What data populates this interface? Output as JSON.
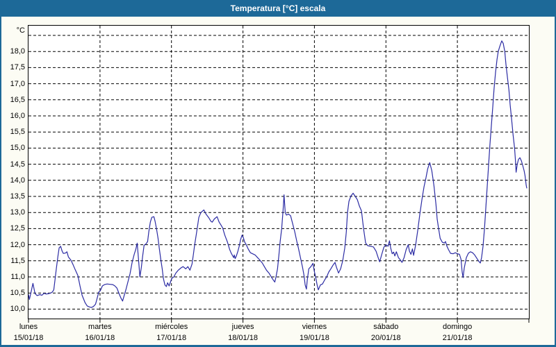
{
  "window": {
    "title": "Temperatura [°C] escala"
  },
  "colors": {
    "title_bar": "#1d6998",
    "frame": "#1d6998",
    "content_background": "#fcfcf4",
    "plot_background": "#ffffff",
    "series_line": "#2b2ba3",
    "grid": "#000000",
    "text": "#000000",
    "title_text": "#ffffff"
  },
  "chart_data": {
    "type": "line",
    "title": "Temperatura [°C] escala",
    "xlabel": "",
    "ylabel": "°C",
    "legend": "none",
    "grid": {
      "style": "dashed",
      "horizontal_step_degC": 0.5,
      "vertical_at_day_boundaries": true
    },
    "y_axis": {
      "min": 10.0,
      "max": 18.5,
      "tick_step": 0.5,
      "decimal_separator": ",",
      "ticks": [
        18.0,
        17.5,
        17.0,
        16.5,
        16.0,
        15.5,
        15.0,
        14.5,
        14.0,
        13.5,
        13.0,
        12.5,
        12.0,
        11.5,
        11.0,
        10.5,
        10.0
      ],
      "tick_labels": [
        "18,0",
        "17,5",
        "17,0",
        "16,5",
        "16,0",
        "15,5",
        "15,0",
        "14,5",
        "14,0",
        "13,5",
        "13,0",
        "12,5",
        "12,0",
        "11,5",
        "11,0",
        "10,5",
        "10,0"
      ],
      "unlabeled_top_gridline": 18.5
    },
    "x_axis": {
      "unit": "hours",
      "range_hours": [
        0,
        168
      ],
      "days_total": 7,
      "day_ticks": [
        {
          "name": "lunes",
          "date": "15/01/18"
        },
        {
          "name": "martes",
          "date": "16/01/18"
        },
        {
          "name": "miércoles",
          "date": "17/01/18"
        },
        {
          "name": "jueves",
          "date": "18/01/18"
        },
        {
          "name": "viernes",
          "date": "19/01/18"
        },
        {
          "name": "sábado",
          "date": "20/01/18"
        },
        {
          "name": "domingo",
          "date": "21/01/18"
        }
      ]
    },
    "series": [
      {
        "name": "Temperatura",
        "unit": "°C",
        "color": "#2b2ba3",
        "points_hours_temp": [
          [
            0,
            10.45
          ],
          [
            0.3,
            10.3
          ],
          [
            0.8,
            10.5
          ],
          [
            1.5,
            10.8
          ],
          [
            2.2,
            10.48
          ],
          [
            2.9,
            10.42
          ],
          [
            3.8,
            10.45
          ],
          [
            4.5,
            10.43
          ],
          [
            5.2,
            10.49
          ],
          [
            5.9,
            10.47
          ],
          [
            6.8,
            10.48
          ],
          [
            7.5,
            10.5
          ],
          [
            8,
            10.53
          ],
          [
            8.5,
            10.6
          ],
          [
            8.9,
            10.9
          ],
          [
            9.4,
            11.3
          ],
          [
            9.9,
            11.65
          ],
          [
            10.3,
            11.9
          ],
          [
            10.8,
            11.95
          ],
          [
            11.3,
            11.8
          ],
          [
            11.7,
            11.73
          ],
          [
            12.4,
            11.74
          ],
          [
            12.9,
            11.78
          ],
          [
            13.4,
            11.62
          ],
          [
            14.3,
            11.51
          ],
          [
            15,
            11.37
          ],
          [
            15.7,
            11.22
          ],
          [
            16.6,
            11.04
          ],
          [
            17.3,
            10.72
          ],
          [
            18,
            10.43
          ],
          [
            19,
            10.2
          ],
          [
            19.7,
            10.1
          ],
          [
            20.4,
            10.07
          ],
          [
            21.1,
            10.05
          ],
          [
            21.8,
            10.08
          ],
          [
            22.5,
            10.15
          ],
          [
            22.9,
            10.28
          ],
          [
            23.6,
            10.53
          ],
          [
            24.1,
            10.57
          ],
          [
            24.8,
            10.72
          ],
          [
            25.5,
            10.76
          ],
          [
            26.4,
            10.78
          ],
          [
            27.4,
            10.77
          ],
          [
            28.3,
            10.76
          ],
          [
            29,
            10.72
          ],
          [
            29.7,
            10.65
          ],
          [
            30.4,
            10.48
          ],
          [
            31.1,
            10.33
          ],
          [
            31.6,
            10.25
          ],
          [
            32,
            10.38
          ],
          [
            32.7,
            10.6
          ],
          [
            33.4,
            10.85
          ],
          [
            34.1,
            11.1
          ],
          [
            34.8,
            11.45
          ],
          [
            35.5,
            11.7
          ],
          [
            36,
            11.85
          ],
          [
            36.5,
            12.05
          ],
          [
            36.9,
            11.6
          ],
          [
            37.4,
            11.0
          ],
          [
            37.9,
            11.3
          ],
          [
            38.3,
            11.62
          ],
          [
            38.8,
            11.98
          ],
          [
            39.5,
            12.03
          ],
          [
            40,
            12.1
          ],
          [
            40.4,
            12.4
          ],
          [
            40.9,
            12.7
          ],
          [
            41.4,
            12.85
          ],
          [
            42.1,
            12.87
          ],
          [
            42.5,
            12.73
          ],
          [
            43,
            12.48
          ],
          [
            43.5,
            12.2
          ],
          [
            43.9,
            11.9
          ],
          [
            44.4,
            11.55
          ],
          [
            44.9,
            11.25
          ],
          [
            45.3,
            10.95
          ],
          [
            45.8,
            10.75
          ],
          [
            46.3,
            10.7
          ],
          [
            46.7,
            10.82
          ],
          [
            47.2,
            10.72
          ],
          [
            47.7,
            10.85
          ],
          [
            48.1,
            10.95
          ],
          [
            48.8,
            11.0
          ],
          [
            49.5,
            11.12
          ],
          [
            50.2,
            11.2
          ],
          [
            51.2,
            11.28
          ],
          [
            51.9,
            11.32
          ],
          [
            52.8,
            11.25
          ],
          [
            53.5,
            11.32
          ],
          [
            54.2,
            11.21
          ],
          [
            54.9,
            11.4
          ],
          [
            55.4,
            11.72
          ],
          [
            55.8,
            12.0
          ],
          [
            56.3,
            12.3
          ],
          [
            56.8,
            12.6
          ],
          [
            57.2,
            12.85
          ],
          [
            57.9,
            13.0
          ],
          [
            58.9,
            13.08
          ],
          [
            59.6,
            12.95
          ],
          [
            60.5,
            12.84
          ],
          [
            61.2,
            12.73
          ],
          [
            61.7,
            12.7
          ],
          [
            62.4,
            12.8
          ],
          [
            63.3,
            12.87
          ],
          [
            64,
            12.7
          ],
          [
            64.7,
            12.6
          ],
          [
            65.2,
            12.52
          ],
          [
            65.9,
            12.3
          ],
          [
            66.8,
            12.08
          ],
          [
            67.5,
            11.86
          ],
          [
            68,
            11.75
          ],
          [
            68.4,
            11.68
          ],
          [
            68.9,
            11.6
          ],
          [
            69.1,
            11.68
          ],
          [
            69.4,
            11.57
          ],
          [
            69.8,
            11.65
          ],
          [
            70.3,
            11.8
          ],
          [
            70.8,
            11.97
          ],
          [
            71.2,
            12.15
          ],
          [
            71.7,
            12.3
          ],
          [
            72.2,
            12.2
          ],
          [
            72.6,
            12.08
          ],
          [
            73.1,
            12.0
          ],
          [
            73.8,
            11.86
          ],
          [
            74.5,
            11.75
          ],
          [
            75.2,
            11.72
          ],
          [
            76.1,
            11.68
          ],
          [
            76.8,
            11.61
          ],
          [
            77.5,
            11.54
          ],
          [
            78.5,
            11.43
          ],
          [
            79.2,
            11.32
          ],
          [
            79.9,
            11.21
          ],
          [
            80.8,
            11.11
          ],
          [
            81.5,
            11.0
          ],
          [
            82.2,
            10.9
          ],
          [
            82.7,
            10.84
          ],
          [
            83.1,
            11.0
          ],
          [
            83.6,
            11.25
          ],
          [
            84.1,
            11.7
          ],
          [
            84.5,
            12.1
          ],
          [
            85,
            12.5
          ],
          [
            85.5,
            13.1
          ],
          [
            85.8,
            13.55
          ],
          [
            86.2,
            13.0
          ],
          [
            86.6,
            12.92
          ],
          [
            87.3,
            12.95
          ],
          [
            88,
            12.9
          ],
          [
            88.7,
            12.65
          ],
          [
            89.4,
            12.4
          ],
          [
            90.1,
            12.1
          ],
          [
            90.6,
            11.9
          ],
          [
            91.3,
            11.6
          ],
          [
            92,
            11.3
          ],
          [
            92.5,
            11.05
          ],
          [
            92.9,
            10.75
          ],
          [
            93.3,
            10.62
          ],
          [
            93.6,
            10.9
          ],
          [
            94.1,
            11.25
          ],
          [
            94.8,
            11.32
          ],
          [
            95.5,
            11.42
          ],
          [
            95.9,
            11.2
          ],
          [
            96.4,
            11.0
          ],
          [
            96.9,
            10.75
          ],
          [
            97.3,
            10.6
          ],
          [
            98,
            10.75
          ],
          [
            98.7,
            10.78
          ],
          [
            99.4,
            10.9
          ],
          [
            100.1,
            11.0
          ],
          [
            100.8,
            11.15
          ],
          [
            101.5,
            11.25
          ],
          [
            102.2,
            11.36
          ],
          [
            102.9,
            11.45
          ],
          [
            103.4,
            11.3
          ],
          [
            104.1,
            11.12
          ],
          [
            104.8,
            11.25
          ],
          [
            105.5,
            11.5
          ],
          [
            106.2,
            11.9
          ],
          [
            106.7,
            12.4
          ],
          [
            107.1,
            13.0
          ],
          [
            107.6,
            13.35
          ],
          [
            108.3,
            13.52
          ],
          [
            109,
            13.6
          ],
          [
            109.7,
            13.5
          ],
          [
            110.4,
            13.4
          ],
          [
            111.1,
            13.2
          ],
          [
            111.8,
            13.05
          ],
          [
            112.5,
            12.5
          ],
          [
            113.2,
            12.05
          ],
          [
            113.9,
            11.97
          ],
          [
            114.9,
            11.95
          ],
          [
            115.8,
            11.93
          ],
          [
            116.7,
            11.8
          ],
          [
            117.4,
            11.6
          ],
          [
            117.9,
            11.47
          ],
          [
            118.6,
            11.7
          ],
          [
            119.3,
            11.92
          ],
          [
            120,
            12.0
          ],
          [
            120.7,
            11.95
          ],
          [
            121.2,
            12.12
          ],
          [
            121.6,
            11.9
          ],
          [
            122.1,
            11.72
          ],
          [
            122.6,
            11.77
          ],
          [
            123,
            11.65
          ],
          [
            123.5,
            11.78
          ],
          [
            124.2,
            11.6
          ],
          [
            124.9,
            11.52
          ],
          [
            125.4,
            11.45
          ],
          [
            126.1,
            11.6
          ],
          [
            126.8,
            11.85
          ],
          [
            127.5,
            12.0
          ],
          [
            127.9,
            11.8
          ],
          [
            128.4,
            11.7
          ],
          [
            128.9,
            11.87
          ],
          [
            129.3,
            11.67
          ],
          [
            130,
            12.0
          ],
          [
            130.7,
            12.45
          ],
          [
            131.4,
            12.95
          ],
          [
            132.1,
            13.4
          ],
          [
            132.8,
            13.8
          ],
          [
            133.5,
            14.1
          ],
          [
            134,
            14.35
          ],
          [
            134.7,
            14.55
          ],
          [
            135.4,
            14.3
          ],
          [
            136.1,
            13.85
          ],
          [
            136.8,
            13.25
          ],
          [
            137.2,
            12.8
          ],
          [
            137.7,
            12.5
          ],
          [
            138.2,
            12.2
          ],
          [
            138.9,
            12.08
          ],
          [
            139.6,
            12.05
          ],
          [
            140,
            12.1
          ],
          [
            140.5,
            11.95
          ],
          [
            141,
            11.85
          ],
          [
            141.7,
            11.73
          ],
          [
            142.6,
            11.72
          ],
          [
            143.3,
            11.75
          ],
          [
            144,
            11.72
          ],
          [
            144.7,
            11.7
          ],
          [
            145.2,
            11.55
          ],
          [
            145.6,
            11.15
          ],
          [
            145.9,
            10.98
          ],
          [
            146.3,
            11.28
          ],
          [
            147,
            11.6
          ],
          [
            147.7,
            11.74
          ],
          [
            148.4,
            11.78
          ],
          [
            149.1,
            11.75
          ],
          [
            149.8,
            11.68
          ],
          [
            150.5,
            11.58
          ],
          [
            151.2,
            11.48
          ],
          [
            151.7,
            11.43
          ],
          [
            152.1,
            11.6
          ],
          [
            152.6,
            11.95
          ],
          [
            153.1,
            12.5
          ],
          [
            153.5,
            13.1
          ],
          [
            154,
            13.8
          ],
          [
            154.5,
            14.5
          ],
          [
            154.9,
            15.1
          ],
          [
            155.4,
            15.7
          ],
          [
            155.9,
            16.3
          ],
          [
            156.3,
            16.85
          ],
          [
            156.8,
            17.35
          ],
          [
            157.3,
            17.75
          ],
          [
            157.7,
            18.0
          ],
          [
            158.2,
            18.15
          ],
          [
            158.7,
            18.28
          ],
          [
            158.9,
            18.33
          ],
          [
            159.4,
            18.25
          ],
          [
            159.9,
            18.0
          ],
          [
            160.3,
            17.6
          ],
          [
            160.8,
            17.2
          ],
          [
            161.3,
            16.8
          ],
          [
            161.7,
            16.35
          ],
          [
            162.2,
            15.9
          ],
          [
            162.7,
            15.4
          ],
          [
            163.2,
            15.0
          ],
          [
            163.5,
            14.6
          ],
          [
            163.7,
            14.25
          ],
          [
            164.1,
            14.5
          ],
          [
            164.5,
            14.65
          ],
          [
            165,
            14.7
          ],
          [
            165.5,
            14.6
          ],
          [
            165.9,
            14.47
          ],
          [
            166.4,
            14.3
          ],
          [
            166.7,
            14.15
          ],
          [
            167.1,
            13.85
          ],
          [
            167.3,
            13.75
          ]
        ]
      }
    ]
  }
}
